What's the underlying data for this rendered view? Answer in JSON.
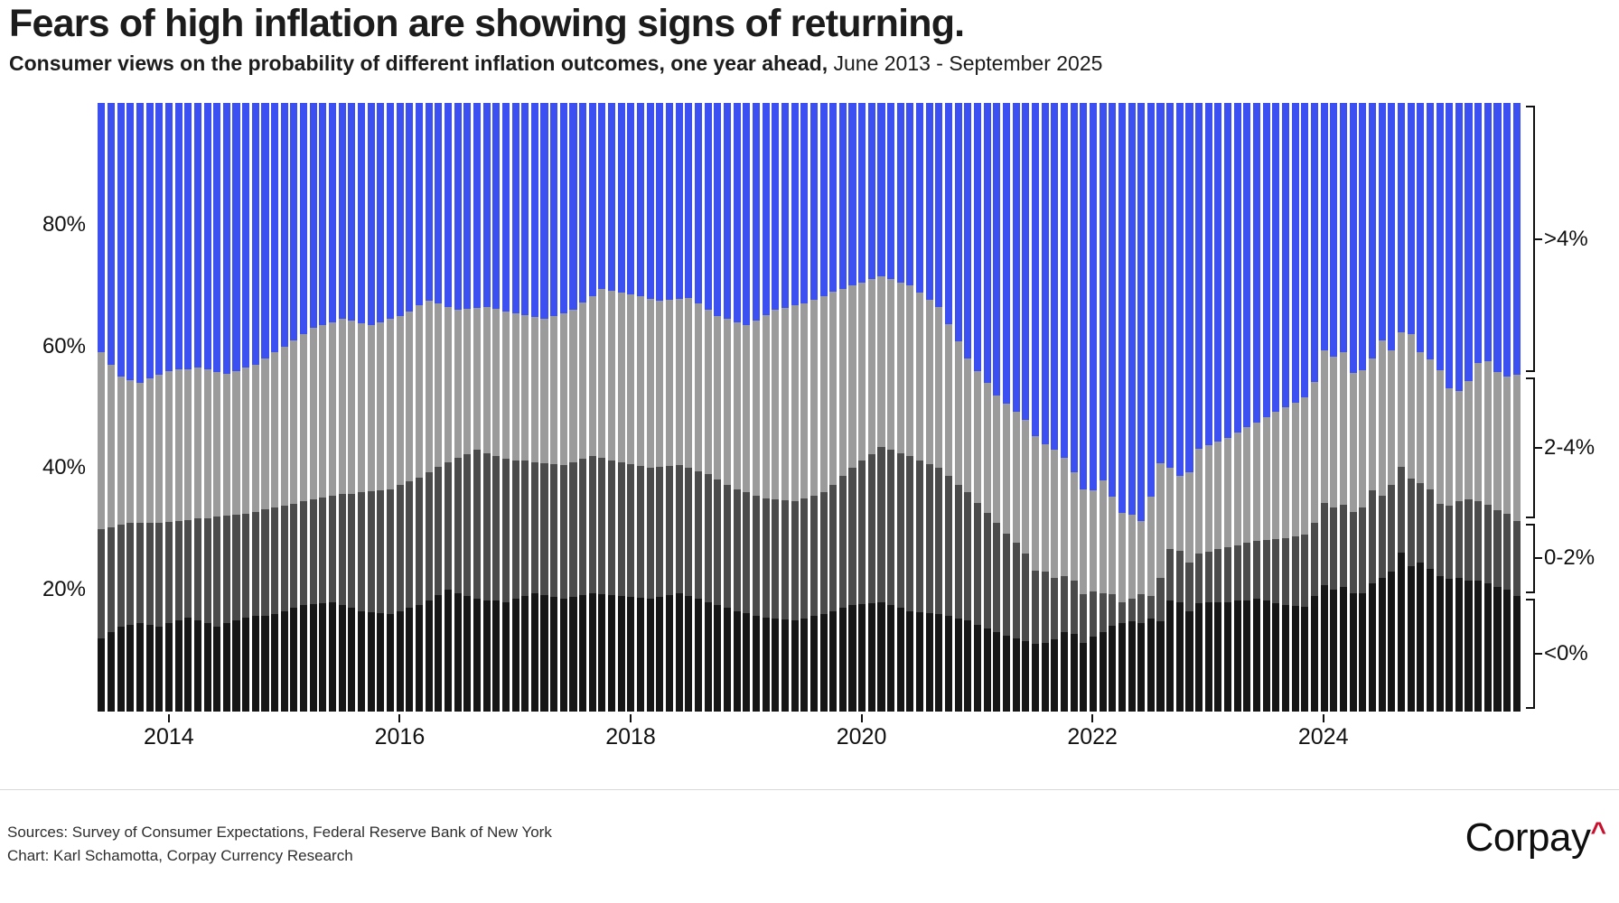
{
  "header": {
    "title": "Fears of high inflation are showing signs of returning.",
    "subtitle_bold": "Consumer views on the probability of different inflation outcomes, one year ahead,",
    "subtitle_regular": " June 2013 - September 2025"
  },
  "footer": {
    "sources_line": "Sources: Survey of Consumer Expectations, Federal Reserve Bank of New York",
    "chart_line": "Chart: Karl Schamotta, Corpay Currency Research",
    "logo_text": "Corpay",
    "logo_caret": "^"
  },
  "colors": {
    "below_zero": "#161616",
    "zero_two": "#4b4b4b",
    "two_four": "#9b9b9b",
    "above_four": "#3c4ff0",
    "logo_red": "#c8102e",
    "text": "#111111"
  },
  "chart_data": {
    "type": "bar",
    "stacked": true,
    "normalized_to_100": true,
    "title": "Fears of high inflation are showing signs of returning.",
    "subtitle": "Consumer views on the probability of different inflation outcomes, one year ahead, June 2013 - September 2025",
    "x_start": "2013-06",
    "x_end": "2025-09",
    "n_months": 148,
    "ylabel": "",
    "ylim": [
      0,
      100
    ],
    "grid": false,
    "y_ticks": [
      {
        "label": "20%",
        "value": 20
      },
      {
        "label": "40%",
        "value": 40
      },
      {
        "label": "60%",
        "value": 60
      },
      {
        "label": "80%",
        "value": 80
      }
    ],
    "x_ticks": [
      {
        "label": "2014",
        "month_index": 7
      },
      {
        "label": "2016",
        "month_index": 31
      },
      {
        "label": "2018",
        "month_index": 55
      },
      {
        "label": "2020",
        "month_index": 79
      },
      {
        "label": "2022",
        "month_index": 103
      },
      {
        "label": "2024",
        "month_index": 127
      }
    ],
    "legend_position": "right-brackets",
    "series": [
      {
        "name": "<0%",
        "color": "#161616",
        "values": [
          12,
          13,
          14,
          14.3,
          14.5,
          14.3,
          14,
          14.5,
          15,
          15.5,
          15,
          14.5,
          14,
          14.5,
          15,
          15.5,
          15.7,
          15.8,
          16,
          16.5,
          17,
          17.5,
          17.7,
          17.8,
          18,
          17.5,
          17,
          16.5,
          16.3,
          16.2,
          16,
          16.5,
          17,
          17.5,
          18.3,
          19.2,
          20,
          19.5,
          19,
          18.5,
          18.3,
          18.2,
          18,
          18.5,
          19,
          19.5,
          19.2,
          18.8,
          18.5,
          18.8,
          19.2,
          19.5,
          19.3,
          19.2,
          19,
          18.8,
          18.7,
          18.5,
          18.8,
          19.2,
          19.5,
          19,
          18.5,
          18,
          17.5,
          17,
          16.5,
          16.2,
          15.8,
          15.5,
          15.3,
          15.2,
          15,
          15.3,
          15.7,
          16,
          16.5,
          17,
          17.5,
          17.7,
          17.8,
          18,
          17.5,
          17,
          16.5,
          16.3,
          16.2,
          16,
          15.7,
          15.3,
          15,
          14.3,
          13.7,
          13,
          12.5,
          12,
          11.6,
          11.1,
          11.3,
          11.9,
          13.1,
          12.8,
          11.3,
          12.3,
          13.1,
          14.1,
          14.5,
          14.8,
          14.5,
          15.3,
          14.8,
          18.2,
          18,
          16.5,
          17.8,
          17.9,
          17.9,
          18,
          18.2,
          18.3,
          18.5,
          18.2,
          17.8,
          17.5,
          17.3,
          17.2,
          19,
          20.8,
          20,
          20.5,
          19.5,
          19.4,
          21,
          22,
          23,
          26.1,
          23.9,
          24.5,
          23.5,
          22.3,
          21.8,
          22,
          21.5,
          21.5,
          21,
          20.5,
          20,
          19
        ]
      },
      {
        "name": "0-2%",
        "color": "#4b4b4b",
        "values": [
          18,
          17.3,
          16.7,
          16.7,
          16.5,
          16.7,
          17,
          16.7,
          16.3,
          16,
          16.7,
          17.3,
          18,
          17.7,
          17.3,
          17,
          17.1,
          17.4,
          17.5,
          17.3,
          17.2,
          17,
          17.1,
          17.4,
          17.5,
          18.2,
          18.8,
          19.5,
          19.9,
          20.1,
          20.5,
          20.7,
          20.8,
          21,
          21,
          21,
          21,
          22.2,
          23.3,
          24.5,
          24.2,
          23.8,
          23.5,
          22.8,
          22.2,
          21.5,
          21.6,
          21.9,
          22,
          22.2,
          22.3,
          22.5,
          22.4,
          22.1,
          22,
          21.9,
          21.6,
          21.5,
          21.4,
          21.1,
          21,
          21,
          21,
          21,
          20.7,
          20.3,
          20,
          19.8,
          19.7,
          19.5,
          19.5,
          19.5,
          19.5,
          19.7,
          19.8,
          20,
          20.8,
          21.7,
          22.5,
          23.5,
          24.5,
          25.5,
          25.5,
          25.5,
          25.5,
          25,
          24.5,
          24,
          23,
          22,
          21,
          20,
          19,
          18,
          16.8,
          15.7,
          14.4,
          12.1,
          11.7,
          10.1,
          9.1,
          8.7,
          8,
          7.4,
          6.4,
          5.2,
          3.5,
          3.7,
          4.8,
          3.7,
          7.2,
          8.5,
          8.4,
          8,
          8.2,
          8.4,
          8.8,
          9,
          9.1,
          9.4,
          9.5,
          10,
          10.5,
          11,
          11.5,
          11.9,
          12,
          13.5,
          13.5,
          13.5,
          13.3,
          14.1,
          15.3,
          13.5,
          14.2,
          14.1,
          14.4,
          13,
          13,
          11.8,
          12,
          12.5,
          13.4,
          13,
          13,
          12.6,
          12.5,
          12.3
        ]
      },
      {
        "name": "2-4%",
        "color": "#9b9b9b",
        "values": [
          29,
          26.7,
          24.3,
          23.5,
          23,
          23.7,
          24.3,
          24.8,
          24.9,
          24.8,
          24.8,
          24.4,
          23.8,
          23.3,
          23.7,
          24,
          24.2,
          24.8,
          25.5,
          26.2,
          26.8,
          27.5,
          28.2,
          28.3,
          28.5,
          28.8,
          28.4,
          27.8,
          27.3,
          27.7,
          28,
          27.8,
          28,
          28.2,
          28.2,
          26.8,
          25.5,
          24.3,
          23.9,
          23.3,
          24,
          24.2,
          24.3,
          24.2,
          24,
          23.8,
          23.7,
          24.3,
          25,
          25,
          25.7,
          26.3,
          27.8,
          27.9,
          27.8,
          27.8,
          27.9,
          27.8,
          27.3,
          27.4,
          27.3,
          28,
          27.5,
          27,
          26.8,
          27.2,
          27.5,
          27.5,
          28.8,
          30.2,
          31.2,
          31.6,
          32.2,
          32,
          32.2,
          32.3,
          31.7,
          30.8,
          30,
          29.3,
          28.7,
          28,
          28,
          28,
          28,
          27.5,
          27,
          26.5,
          25,
          23.5,
          22,
          21.7,
          21.3,
          21,
          21.3,
          21.6,
          21.9,
          22,
          20.9,
          21,
          19.5,
          17.8,
          17.2,
          16.6,
          18.5,
          16,
          14.6,
          13.8,
          12,
          16.3,
          18.8,
          13.3,
          12.3,
          14.8,
          17.2,
          17.5,
          17.7,
          18,
          18.5,
          19,
          19.5,
          20.1,
          20.9,
          21.5,
          22,
          22.5,
          23.1,
          25,
          24.8,
          25,
          22.8,
          22.6,
          21.7,
          25.5,
          22.1,
          22.1,
          23.7,
          21.5,
          21.4,
          22,
          19.3,
          18.2,
          19.4,
          22.8,
          23.6,
          22.7,
          22.5,
          24
        ]
      },
      {
        "name": ">4%",
        "color": "#3c4ff0",
        "values": [
          41,
          43,
          45,
          45.5,
          46,
          45.3,
          44.7,
          44,
          43.8,
          43.7,
          43.5,
          43.8,
          44.2,
          44.5,
          44,
          43.5,
          43,
          42,
          41,
          40,
          39,
          38,
          37,
          36.5,
          36,
          35.5,
          35.8,
          36.2,
          36.5,
          36,
          35.5,
          35,
          34.2,
          33.3,
          32.5,
          33,
          33.5,
          34,
          33.8,
          33.7,
          33.5,
          33.8,
          34.2,
          34.5,
          34.8,
          35.2,
          35.5,
          35,
          34.5,
          34,
          32.8,
          31.7,
          30.5,
          30.8,
          31.2,
          31.5,
          31.8,
          32.2,
          32.5,
          32.3,
          32.2,
          32,
          33,
          34,
          35,
          35.5,
          36,
          36.5,
          35.7,
          34.8,
          34,
          33.7,
          33.3,
          33,
          32.3,
          31.7,
          31,
          30.5,
          30,
          29.5,
          29,
          28.5,
          29,
          29.5,
          30,
          31.2,
          32.3,
          33.5,
          36.3,
          39.2,
          42,
          44,
          46,
          48,
          49.4,
          50.7,
          52.1,
          54.8,
          56.1,
          57,
          58.3,
          60.7,
          63.5,
          63.7,
          62,
          64.7,
          67.4,
          67.7,
          68.7,
          64.7,
          59.2,
          60,
          61.3,
          60.7,
          56.8,
          56.2,
          55.6,
          55,
          54.2,
          53.3,
          52.5,
          51.7,
          50.8,
          50,
          49.2,
          48.4,
          45.9,
          40.7,
          41.7,
          41,
          44.4,
          43.9,
          42,
          39,
          40.7,
          37.7,
          38,
          41,
          42.1,
          43.9,
          46.9,
          47.3,
          45.7,
          42.7,
          42.4,
          44.2,
          45,
          44.7
        ]
      }
    ]
  }
}
